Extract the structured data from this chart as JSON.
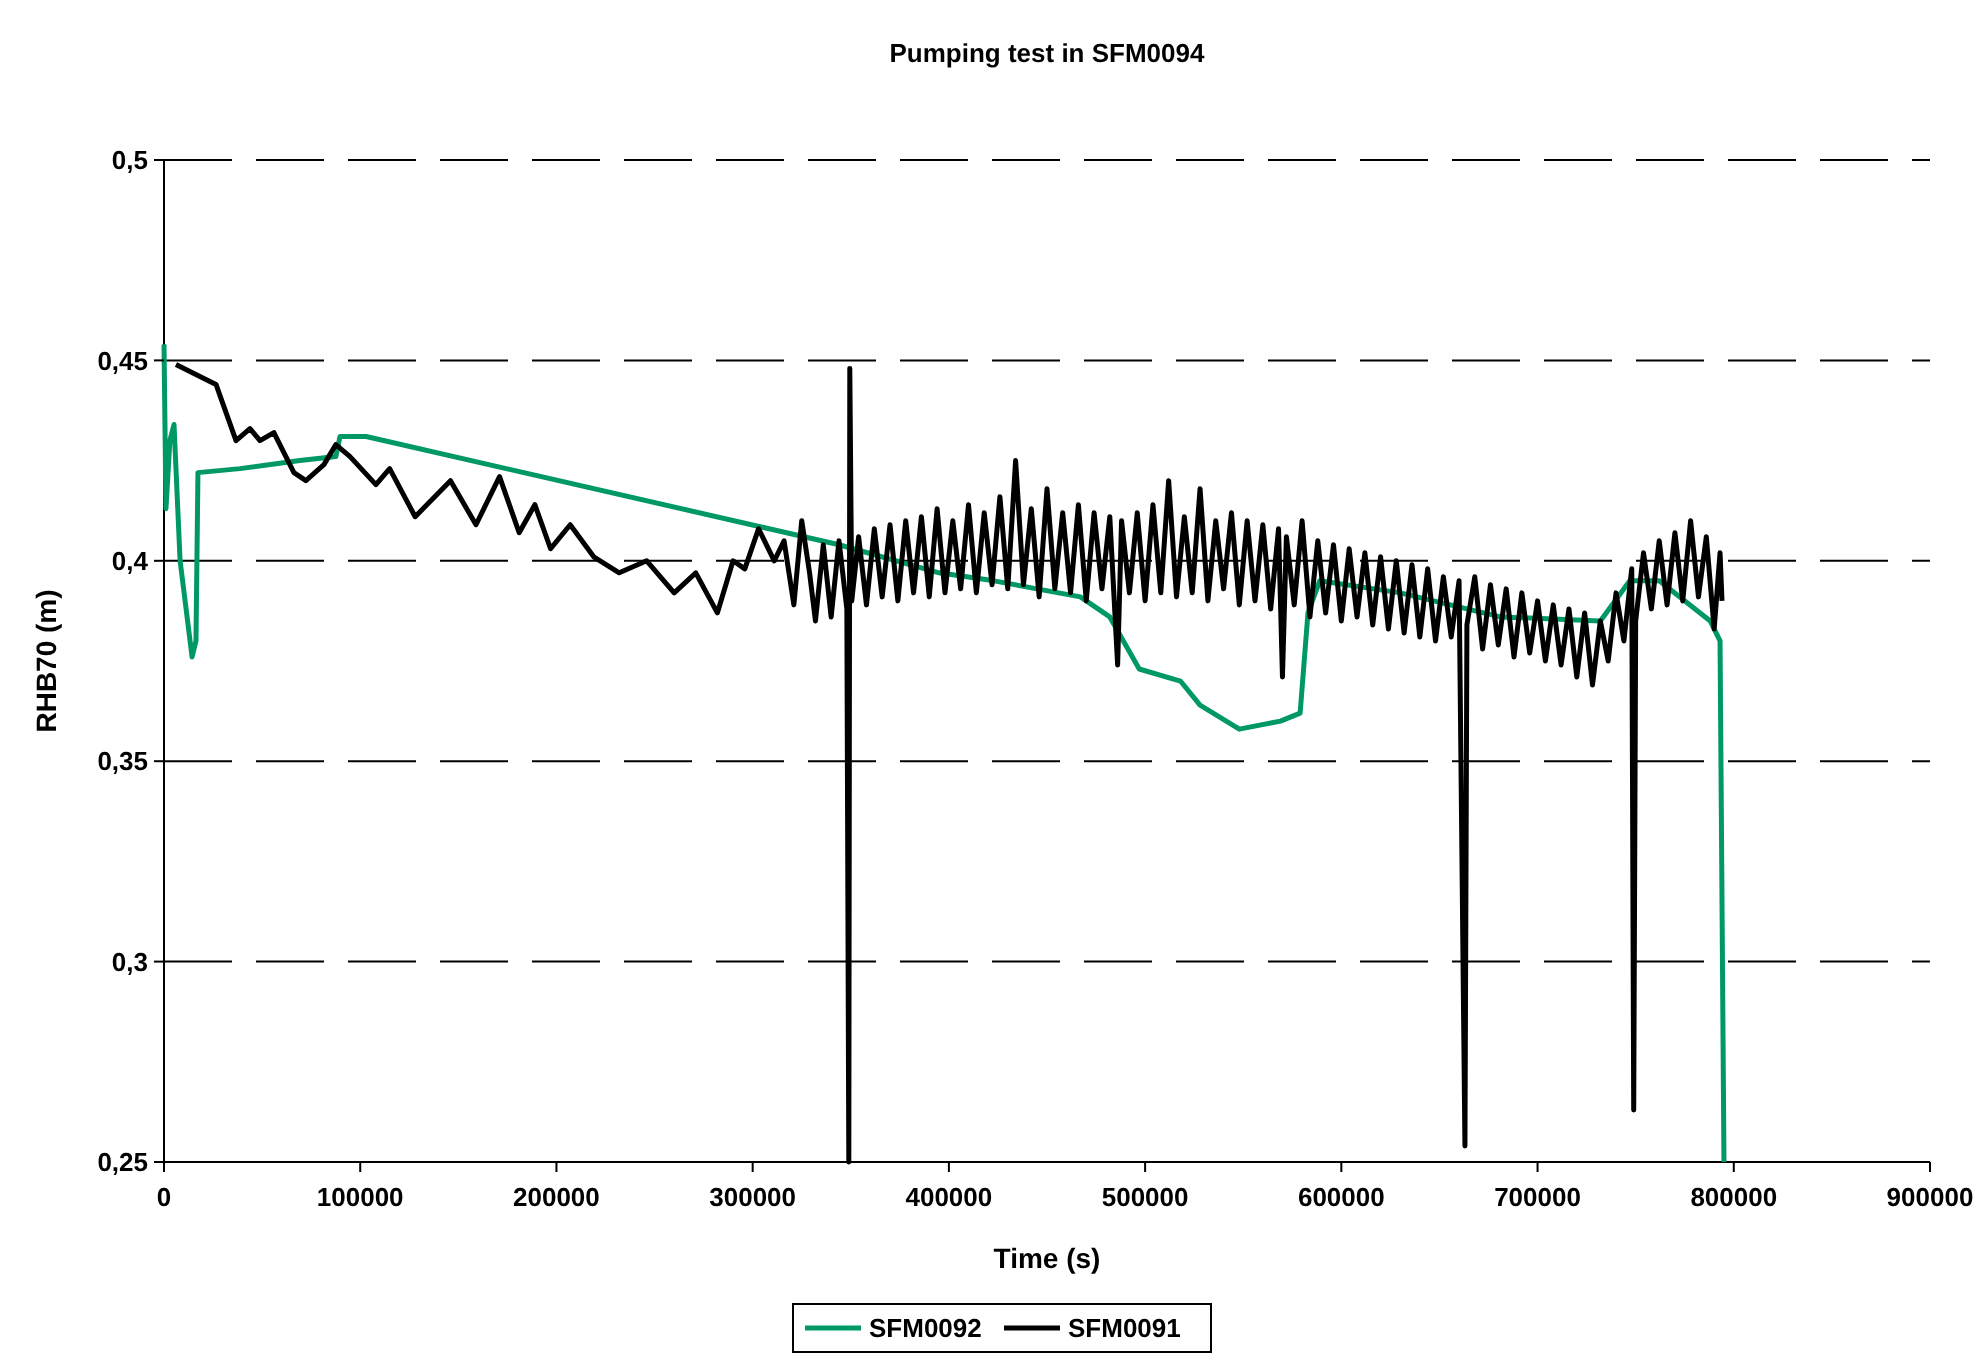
{
  "chart_data": {
    "type": "line",
    "title": "Pumping test in SFM0094",
    "xlabel": "Time (s)",
    "ylabel": "RHB70 (m)",
    "xlim": [
      0,
      900000
    ],
    "xticks": [
      0,
      100000,
      200000,
      300000,
      400000,
      500000,
      600000,
      700000,
      800000,
      900000
    ],
    "ylim": [
      0.25,
      0.5
    ],
    "yticks": [
      {
        "value": 0.25,
        "label": "0,25"
      },
      {
        "value": 0.3,
        "label": "0,3"
      },
      {
        "value": 0.35,
        "label": "0,35"
      },
      {
        "value": 0.4,
        "label": "0,4"
      },
      {
        "value": 0.45,
        "label": "0,45"
      },
      {
        "value": 0.5,
        "label": "0,5"
      }
    ],
    "grid": "y",
    "legend": "bottom",
    "marker": "none",
    "line_style": "solid",
    "series": [
      {
        "name": "SFM0092",
        "color": "#009966",
        "x": [
          0,
          1000,
          3000,
          5100,
          8200,
          14300,
          16300,
          17300,
          38700,
          69300,
          87600,
          89700,
          103000,
          344000,
          395000,
          423000,
          467000,
          482000,
          497000,
          518000,
          528000,
          548000,
          569000,
          579000,
          583000,
          589000,
          630000,
          681000,
          732000,
          747000,
          762000,
          788000,
          791000,
          793000,
          795000
        ],
        "values": [
          0.454,
          0.413,
          0.43,
          0.434,
          0.4,
          0.376,
          0.38,
          0.422,
          0.423,
          0.425,
          0.426,
          0.431,
          0.431,
          0.404,
          0.397,
          0.395,
          0.391,
          0.386,
          0.373,
          0.37,
          0.364,
          0.358,
          0.36,
          0.362,
          0.387,
          0.395,
          0.392,
          0.386,
          0.385,
          0.395,
          0.395,
          0.385,
          0.382,
          0.38,
          0.25
        ]
      },
      {
        "name": "SFM0091",
        "color": "#000000",
        "x": [
          6100,
          18300,
          26500,
          36700,
          43800,
          48900,
          56000,
          66200,
          72300,
          81500,
          87600,
          94800,
          108000,
          115000,
          128000,
          146000,
          159000,
          171000,
          181000,
          189000,
          197000,
          207000,
          219000,
          232000,
          246000,
          260000,
          271000,
          282000,
          290000,
          296000,
          303000,
          311000,
          316000,
          321000,
          325000,
          329000,
          332000,
          336000,
          340000,
          344000,
          348000,
          349000,
          349500,
          350500,
          354000,
          358000,
          362000,
          366000,
          370000,
          374000,
          378000,
          382000,
          386000,
          390000,
          394000,
          398000,
          402000,
          406000,
          410000,
          414000,
          418000,
          422000,
          426000,
          430000,
          434000,
          438000,
          442000,
          446000,
          450000,
          454000,
          458000,
          462000,
          466000,
          470000,
          474000,
          478000,
          482000,
          486000,
          488000,
          492000,
          496000,
          500000,
          504000,
          508000,
          512000,
          516000,
          520000,
          524000,
          528000,
          532000,
          536000,
          540000,
          544000,
          548000,
          552000,
          556000,
          560000,
          564000,
          568000,
          570000,
          572000,
          576000,
          580000,
          584000,
          588000,
          592000,
          596000,
          600000,
          604000,
          608000,
          612000,
          616000,
          620000,
          624000,
          628000,
          632000,
          636000,
          640000,
          644000,
          648000,
          652000,
          656000,
          660000,
          663000,
          664000,
          668000,
          672000,
          676000,
          680000,
          684000,
          688000,
          692000,
          696000,
          700000,
          704000,
          708000,
          712000,
          716000,
          720000,
          724000,
          728000,
          732000,
          736000,
          740000,
          744000,
          748000,
          749000,
          750000,
          754000,
          758000,
          762000,
          766000,
          770000,
          774000,
          778000,
          782000,
          786000,
          790000,
          793000,
          794000
        ],
        "values": [
          0.449,
          0.446,
          0.444,
          0.43,
          0.433,
          0.43,
          0.432,
          0.422,
          0.42,
          0.424,
          0.429,
          0.426,
          0.419,
          0.423,
          0.411,
          0.42,
          0.409,
          0.421,
          0.407,
          0.414,
          0.403,
          0.409,
          0.401,
          0.397,
          0.4,
          0.392,
          0.397,
          0.387,
          0.4,
          0.398,
          0.408,
          0.4,
          0.405,
          0.389,
          0.41,
          0.397,
          0.385,
          0.404,
          0.386,
          0.405,
          0.388,
          0.25,
          0.448,
          0.39,
          0.406,
          0.389,
          0.408,
          0.391,
          0.409,
          0.39,
          0.41,
          0.392,
          0.411,
          0.391,
          0.413,
          0.392,
          0.41,
          0.393,
          0.414,
          0.392,
          0.412,
          0.394,
          0.416,
          0.393,
          0.425,
          0.394,
          0.413,
          0.391,
          0.418,
          0.393,
          0.412,
          0.392,
          0.414,
          0.39,
          0.412,
          0.393,
          0.411,
          0.374,
          0.41,
          0.392,
          0.412,
          0.39,
          0.414,
          0.392,
          0.42,
          0.391,
          0.411,
          0.392,
          0.418,
          0.39,
          0.41,
          0.393,
          0.412,
          0.389,
          0.41,
          0.39,
          0.409,
          0.388,
          0.408,
          0.371,
          0.406,
          0.389,
          0.41,
          0.386,
          0.405,
          0.387,
          0.404,
          0.385,
          0.403,
          0.386,
          0.402,
          0.384,
          0.401,
          0.383,
          0.4,
          0.382,
          0.399,
          0.381,
          0.398,
          0.38,
          0.396,
          0.381,
          0.395,
          0.254,
          0.384,
          0.396,
          0.378,
          0.394,
          0.379,
          0.393,
          0.376,
          0.392,
          0.377,
          0.39,
          0.375,
          0.389,
          0.374,
          0.388,
          0.371,
          0.387,
          0.369,
          0.385,
          0.375,
          0.392,
          0.38,
          0.398,
          0.263,
          0.385,
          0.402,
          0.388,
          0.405,
          0.389,
          0.407,
          0.39,
          0.41,
          0.391,
          0.406,
          0.383,
          0.402,
          0.39
        ]
      }
    ]
  }
}
